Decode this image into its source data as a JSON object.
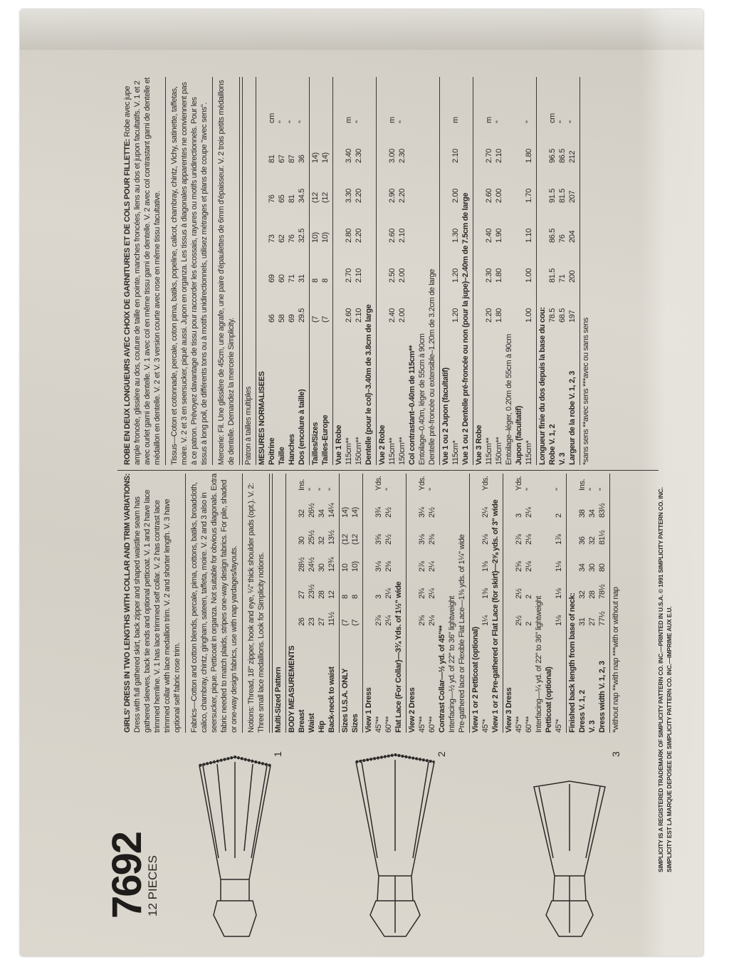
{
  "pattern": {
    "number": "7692",
    "pieces": "12 PIECES",
    "view_labels": [
      "1",
      "2",
      "3"
    ]
  },
  "english": {
    "title": "GIRLS' DRESS IN TWO LENGTHS WITH COLLAR AND TRIM VARIATIONS:",
    "description": "Dress with full gathered skirt, back zipper and shaped waistline seam has gathered sleeves, back tie ends and optional petticoat. V. 1 and 2 have lace trimmed hemline. V. 1 has lace trimmed self collar. V. 2 has contrast lace trimmed collar with lace medallion trim. V. 2 and shorter length. V. 3 have optional self fabric rose trim.",
    "fabrics": "Fabrics—Cotton and cotton blends, percale, pima, cottons, batiks, broadcloth, calico, chambray, chintz, gingham, sateen, taffeta, moire. V. 2 and 3 also in seersucker, pique. Petticoat in organza. Not suitable for obvious diagonals. Extra fabric needed to match plaids, stripes one-way design fabrics. For pile, shaded or one-way design fabrics, use with nap yardages/layouts.",
    "notions": "Notions: Thread, 18\" zipper, hook and eye, ¼\" thick shoulder pads (opt.). V. 2: Three small lace medallions. Look for Simplicity notions.",
    "rows": [
      {
        "label": "Multi-Sized Pattern",
        "values": [],
        "unit": "",
        "bold": true,
        "sec": true
      },
      {
        "label": "BODY MEASUREMENTS",
        "values": [],
        "unit": "",
        "bold": true,
        "sec": true
      },
      {
        "label": "Breast",
        "values": [
          "26",
          "27",
          "28½",
          "30",
          "32"
        ],
        "unit": "Ins.",
        "bold": true
      },
      {
        "label": "Waist",
        "values": [
          "23",
          "23½",
          "24½",
          "25½",
          "26½"
        ],
        "unit": "\"",
        "bold": true
      },
      {
        "label": "Hip",
        "values": [
          "27",
          "28",
          "30",
          "32",
          "34"
        ],
        "unit": "\"",
        "bold": true
      },
      {
        "label": "Back-neck to waist",
        "values": [
          "11½",
          "12",
          "12¾",
          "13½",
          "14¼"
        ],
        "unit": "\"",
        "bold": true
      },
      {
        "label": "Sizes U.S.A. ONLY",
        "values": [
          "(7",
          "8",
          "10",
          "(12",
          "14)"
        ],
        "unit": "",
        "bold": true,
        "sec": true
      },
      {
        "label": "Sizes",
        "values": [
          "(7",
          "8",
          "10)",
          "(12",
          "14)"
        ],
        "unit": "",
        "bold": true
      },
      {
        "label": "View 1 Dress",
        "values": [],
        "unit": "",
        "bold": true,
        "sec": true
      },
      {
        "label": "45\"**",
        "values": [
          "2⅞",
          "3",
          "3⅛",
          "3⅝",
          "3¾"
        ],
        "unit": "Yds."
      },
      {
        "label": "60\"**",
        "values": [
          "2¼",
          "2¼",
          "2⅜",
          "2½",
          "2½"
        ],
        "unit": "\""
      },
      {
        "note": "Flat Lace (For Collar)—3¾ Yds. of 1½\" wide",
        "bold": true
      },
      {
        "label": "View 2 Dress",
        "values": [],
        "unit": "",
        "bold": true,
        "sec": true
      },
      {
        "label": "45\"**",
        "values": [
          "2⅝",
          "2¾",
          "2⅞",
          "3⅛",
          "3¼"
        ],
        "unit": "Yds."
      },
      {
        "label": "60\"**",
        "values": [
          "2⅛",
          "2¼",
          "2¼",
          "2⅜",
          "2½"
        ],
        "unit": "\""
      },
      {
        "note": "Contrast Collar—½ yd. of 45\"**",
        "bold": true
      },
      {
        "note": "Interfacing—½ yd. of 22\" to 36\" lightweight"
      },
      {
        "note": "Pre-gathered lace or Flexible Flat Lace—1⅜ yds. of 1¼\" wide"
      },
      {
        "label": "View 1 or 2 Petticoat (optional)",
        "values": [],
        "unit": "",
        "bold": true,
        "sec": true
      },
      {
        "label": "45\"*",
        "values": [
          "1¼",
          "1⅜",
          "1⅜",
          "2⅛",
          "2¼"
        ],
        "unit": "Yds."
      },
      {
        "note": "View 1 or 2 Pre-gathered or Flat Lace (for skirt)—2⅝ yds. of 3\" wide",
        "bold": true
      },
      {
        "label": "View 3 Dress",
        "values": [],
        "unit": "",
        "bold": true,
        "sec": true
      },
      {
        "label": "45\"**",
        "values": [
          "2½",
          "2½",
          "2⅝",
          "2⅞",
          "3"
        ],
        "unit": "Yds."
      },
      {
        "label": "60\"**",
        "values": [
          "2",
          "2",
          "2⅛",
          "2⅛",
          "2¼"
        ],
        "unit": "\""
      },
      {
        "note": "Interfacing—¼ yd. of 22\" to 36\" lightweight"
      },
      {
        "label": "Petticoat (optional)",
        "values": [],
        "unit": "",
        "bold": true
      },
      {
        "label": "45\"*",
        "values": [
          "1⅛",
          "1⅛",
          "1⅛",
          "1⅞",
          "2"
        ],
        "unit": "\""
      },
      {
        "note": "Finished back length from base of neck:",
        "bold": true,
        "sec": true
      },
      {
        "label": "Dress V. 1, 2",
        "values": [
          "31",
          "32",
          "34",
          "36",
          "38"
        ],
        "unit": "Ins.",
        "bold": true
      },
      {
        "label": "V. 3",
        "values": [
          "27",
          "28",
          "30",
          "32",
          "34"
        ],
        "unit": "\"",
        "bold": true
      },
      {
        "label": "Dress width V. 1, 2, 3",
        "values": [
          "77½",
          "78½",
          "80",
          "81½",
          "83½"
        ],
        "unit": "\"",
        "bold": true
      },
      {
        "note": "*without nap  **with nap  ***with or without nap",
        "sec": true
      }
    ]
  },
  "french": {
    "title": "ROBE EN DEUX LONGUEURS AVEC CHOIX DE GARNITURES ET DE COLS POUR FILLETTE:",
    "description": "Robe avec jupe ample froncée, glissière au dos, couture de taille en pointe, manches froncées, liens au dos et jupon facultatifs. V. 1 et 2 avec ourlet garni de dentelle. V. 1 avec col en même tissu garni de dentelle. V. 2 avec col contrastant garni de dentelle et médaillon en dentelle. V. 2 et V. 3 version courte avec rose en même tissu facultative.",
    "fabrics": "Tissus—Coton et cotonnade, percale, coton pima, batiks, popeline, calicot, chambray, chintz, Vichy, satinette, taffetas, moire. V. 2 et 3 en seersucker, piqué aussi. Jupon en organza. Les tissus à diagonales apparentes ne conviennent pas à ce patron. Prévoyez davantage de tissu pour raccorder les écossais, rayures ou motifs unidirectionnels. Pour les tissus à long poil, de différents tons ou à motifs unidirectionnels, utilisez métrages et plans de coupe \"avec sens\".",
    "notions": "Mercerie: Fil. Une glissière de 45cm, une agrafe, une paire d'épaulettes de 6mm d'épaisseur. V. 2 trois petits médaillons de dentelle. Demandez la mercerie Simplicity.",
    "rows": [
      {
        "label": "Patron à tailles multiples",
        "values": [],
        "unit": "",
        "sec": true
      },
      {
        "label": "MESURES NORMALISEES",
        "values": [],
        "unit": "",
        "bold": true,
        "sec": true
      },
      {
        "label": "Poitrine",
        "values": [
          "66",
          "69",
          "73",
          "76",
          "81"
        ],
        "unit": "cm",
        "bold": true
      },
      {
        "label": "Taille",
        "values": [
          "58",
          "60",
          "62",
          "65",
          "67"
        ],
        "unit": "\"",
        "bold": true
      },
      {
        "label": "Hanches",
        "values": [
          "69",
          "71",
          "76",
          "81",
          "87"
        ],
        "unit": "\"",
        "bold": true
      },
      {
        "label": "Dos (encolure à taille)",
        "values": [
          "29.5",
          "31",
          "32.5",
          "34.5",
          "36"
        ],
        "unit": "\"",
        "bold": true
      },
      {
        "label": "Tailles/Sizes",
        "values": [
          "(7",
          "8",
          "10)",
          "(12",
          "14)"
        ],
        "unit": "",
        "bold": true,
        "sec": true
      },
      {
        "label": "Tailles-Europe",
        "values": [
          "(7",
          "8",
          "10)",
          "(12",
          "14)"
        ],
        "unit": "",
        "bold": true
      },
      {
        "label": "Vue 1 Robe",
        "values": [],
        "unit": "",
        "bold": true,
        "sec": true
      },
      {
        "label": "115cm**",
        "values": [
          "2.60",
          "2.70",
          "2.80",
          "3.30",
          "3.40"
        ],
        "unit": "m"
      },
      {
        "label": "150cm**",
        "values": [
          "2.10",
          "2.10",
          "2.20",
          "2.20",
          "2.30"
        ],
        "unit": "\""
      },
      {
        "note": "Dentelle (pour le col)–3.40m de 3.8cm de large",
        "bold": true
      },
      {
        "label": "Vue 2 Robe",
        "values": [],
        "unit": "",
        "bold": true,
        "sec": true
      },
      {
        "label": "115cm**",
        "values": [
          "2.40",
          "2.50",
          "2.60",
          "2.90",
          "3.00"
        ],
        "unit": "m"
      },
      {
        "label": "150cm**",
        "values": [
          "2.00",
          "2.00",
          "2.10",
          "2.20",
          "2.30"
        ],
        "unit": "\""
      },
      {
        "note": "Col contrastant–0.40m de 115cm**",
        "bold": true
      },
      {
        "note": "Entoilage–0.40m, léger de 55cm à 90cm"
      },
      {
        "note": "Dentelle pré-froncée ou extensible–1.20m de 3.2cm de large"
      },
      {
        "label": "Vue 1 ou 2 Jupon (facultatif)",
        "values": [],
        "unit": "",
        "bold": true,
        "sec": true
      },
      {
        "label": "115cm*",
        "values": [
          "1.20",
          "1.20",
          "1.30",
          "2.00",
          "2.10"
        ],
        "unit": "m"
      },
      {
        "note": "Vue 1 ou 2 Dentelle pré-froncée ou non (pour la jupe)–2.40m de 7.5cm de large",
        "bold": true
      },
      {
        "label": "Vue 3 Robe",
        "values": [],
        "unit": "",
        "bold": true,
        "sec": true
      },
      {
        "label": "115cm**",
        "values": [
          "2.20",
          "2.30",
          "2.40",
          "2.60",
          "2.70"
        ],
        "unit": "m"
      },
      {
        "label": "150cm**",
        "values": [
          "1.80",
          "1.80",
          "1.90",
          "2.00",
          "2.10"
        ],
        "unit": "\""
      },
      {
        "note": "Entoilage–léger, 0.20m de 55cm à 90cm"
      },
      {
        "label": "Jupon (facultatif)",
        "values": [],
        "unit": "",
        "bold": true
      },
      {
        "label": "115cm*",
        "values": [
          "1.00",
          "1.00",
          "1.10",
          "1.70",
          "1.80"
        ],
        "unit": "\""
      },
      {
        "note": "Longueur finie du dos depuis la base du cou:",
        "bold": true,
        "sec": true
      },
      {
        "label": "Robe V. 1, 2",
        "values": [
          "78.5",
          "81.5",
          "86.5",
          "91.5",
          "96.5"
        ],
        "unit": "cm",
        "bold": true
      },
      {
        "label": "V. 3",
        "values": [
          "68.5",
          "71",
          "76",
          "81.5",
          "86.5"
        ],
        "unit": "\"",
        "bold": true
      },
      {
        "label": "Largeur de la robe V. 1, 2, 3",
        "values": [
          "197",
          "200",
          "204",
          "207",
          "212"
        ],
        "unit": "\"",
        "bold": true
      },
      {
        "note": "*sans sens  **avec sens  ***avec ou sans sens",
        "sec": true
      }
    ]
  },
  "footer": {
    "line1": "SIMPLICITY IS A REGISTERED TRADEMARK OF SIMPLICITY PATTERN CO. INC.—PRINTED IN U.S.A. © 1991 SIMPLICITY PATTERN CO. INC.",
    "line2": "SIMPLICITY EST LA MARQUE DEPOSEE DE SIMPLICITY PATTERN CO. INC.—IMPRIME AUX E.U."
  }
}
